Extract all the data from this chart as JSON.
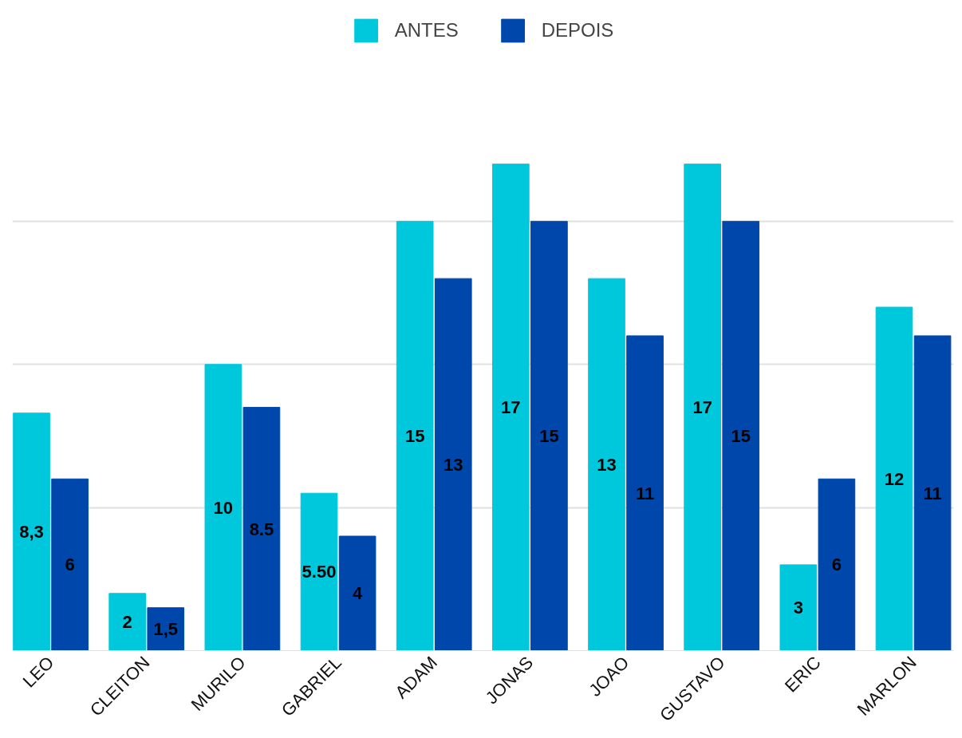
{
  "chart_data": {
    "type": "bar",
    "categories": [
      "LEO",
      "CLEITON",
      "MURILO",
      "GABRIEL",
      "ADAM",
      "JONAS",
      "JOAO",
      "GUSTAVO",
      "ERIC",
      "MARLON"
    ],
    "series": [
      {
        "name": "ANTES",
        "color": "#00c8dc",
        "values": [
          8.3,
          2,
          10,
          5.5,
          15,
          17,
          13,
          17,
          3,
          12
        ],
        "value_labels": [
          "8,3",
          "2",
          "10",
          "5.50",
          "15",
          "17",
          "13",
          "17",
          "3",
          "12"
        ]
      },
      {
        "name": "DEPOIS",
        "color": "#0047ab",
        "values": [
          6,
          1.5,
          8.5,
          4,
          13,
          15,
          11,
          15,
          6,
          11
        ],
        "value_labels": [
          "6",
          "1,5",
          "8.5",
          "4",
          "13",
          "15",
          "11",
          "15",
          "6",
          "11"
        ]
      }
    ],
    "yticks": [
      {
        "value": 0,
        "label": null
      },
      {
        "value": 5,
        "label": null
      },
      {
        "value": 10,
        "label": null
      },
      {
        "value": 15,
        "label": null
      }
    ],
    "tick_labels": "x",
    "grid": "y",
    "legend": "top"
  }
}
